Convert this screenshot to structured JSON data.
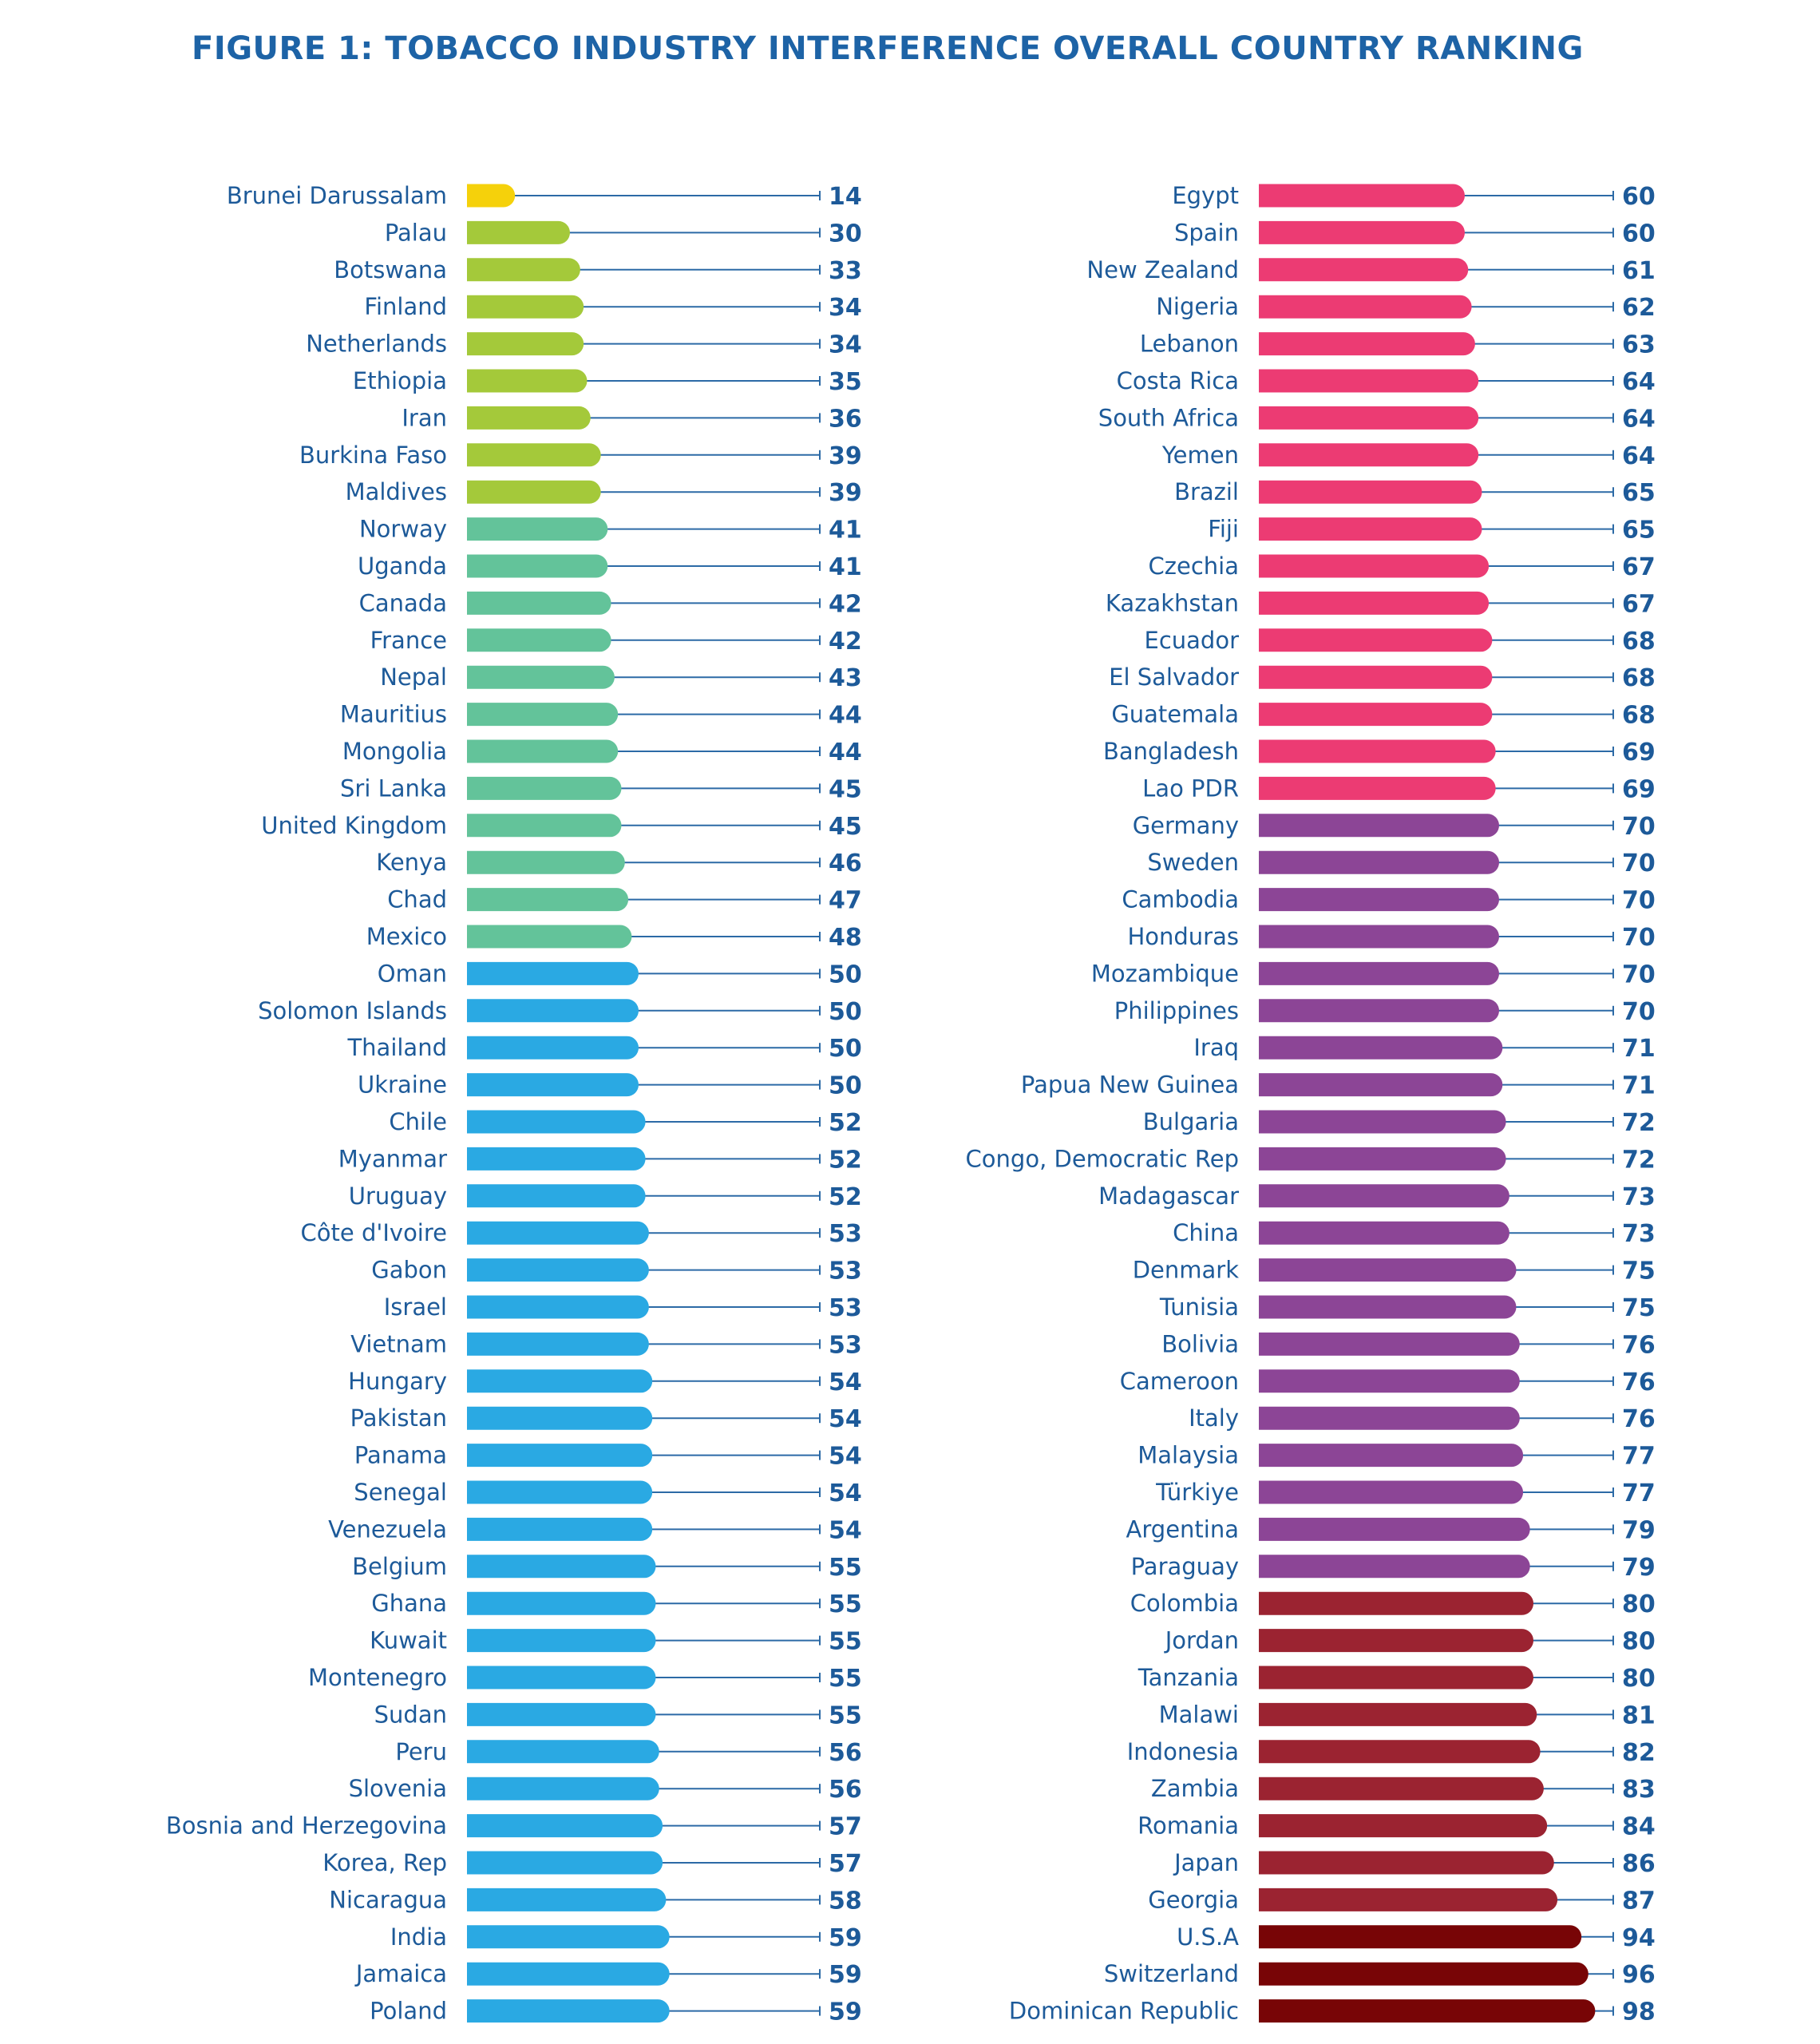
{
  "page": {
    "title": "FIGURE 1: TOBACCO INDUSTRY INTERFERENCE OVERALL COUNTRY RANKING"
  },
  "chart_data": {
    "type": "bar",
    "title": "FIGURE 1: TOBACCO INDUSTRY INTERFERENCE OVERALL COUNTRY RANKING",
    "xlabel": "",
    "ylabel": "",
    "xlim": [
      0,
      100
    ],
    "grid": false,
    "legend": "none",
    "color_bands": [
      {
        "max": 14,
        "color": "#f5d10b"
      },
      {
        "max": 39,
        "color": "#a4c93a"
      },
      {
        "max": 48,
        "color": "#63c39a"
      },
      {
        "max": 59,
        "color": "#2aa9e3"
      },
      {
        "max": 69,
        "color": "#ec3b73"
      },
      {
        "max": 79,
        "color": "#8c4596"
      },
      {
        "max": 87,
        "color": "#9b2331"
      },
      {
        "max": 100,
        "color": "#780506"
      }
    ],
    "columns": [
      {
        "categories": [
          "Brunei Darussalam",
          "Palau",
          "Botswana",
          "Finland",
          "Netherlands",
          "Ethiopia",
          "Iran",
          "Burkina Faso",
          "Maldives",
          "Norway",
          "Uganda",
          "Canada",
          "France",
          "Nepal",
          "Mauritius",
          "Mongolia",
          "Sri Lanka",
          "United Kingdom",
          "Kenya",
          "Chad",
          "Mexico",
          "Oman",
          "Solomon Islands",
          "Thailand",
          "Ukraine",
          "Chile",
          "Myanmar",
          "Uruguay",
          "Côte d'Ivoire",
          "Gabon",
          "Israel",
          "Vietnam",
          "Hungary",
          "Pakistan",
          "Panama",
          "Senegal",
          "Venezuela",
          "Belgium",
          "Ghana",
          "Kuwait",
          "Montenegro",
          "Sudan",
          "Peru",
          "Slovenia",
          "Bosnia and Herzegovina",
          "Korea, Rep",
          "Nicaragua",
          "India",
          "Jamaica",
          "Poland"
        ],
        "values": [
          14,
          30,
          33,
          34,
          34,
          35,
          36,
          39,
          39,
          41,
          41,
          42,
          42,
          43,
          44,
          44,
          45,
          45,
          46,
          47,
          48,
          50,
          50,
          50,
          50,
          52,
          52,
          52,
          53,
          53,
          53,
          53,
          54,
          54,
          54,
          54,
          54,
          55,
          55,
          55,
          55,
          55,
          56,
          56,
          57,
          57,
          58,
          59,
          59,
          59
        ]
      },
      {
        "categories": [
          "Egypt",
          "Spain",
          "New Zealand",
          "Nigeria",
          "Lebanon",
          "Costa Rica",
          "South Africa",
          "Yemen",
          "Brazil",
          "Fiji",
          "Czechia",
          "Kazakhstan",
          "Ecuador",
          "El Salvador",
          "Guatemala",
          "Bangladesh",
          "Lao PDR",
          "Germany",
          "Sweden",
          "Cambodia",
          "Honduras",
          "Mozambique",
          "Philippines",
          "Iraq",
          "Papua New Guinea",
          "Bulgaria",
          "Congo, Democratic Rep",
          "Madagascar",
          "China",
          "Denmark",
          "Tunisia",
          "Bolivia",
          "Cameroon",
          "Italy",
          "Malaysia",
          "Türkiye",
          "Argentina",
          "Paraguay",
          "Colombia",
          "Jordan",
          "Tanzania",
          "Malawi",
          "Indonesia",
          "Zambia",
          "Romania",
          "Japan",
          "Georgia",
          "U.S.A",
          "Switzerland",
          "Dominican Republic"
        ],
        "values": [
          60,
          60,
          61,
          62,
          63,
          64,
          64,
          64,
          65,
          65,
          67,
          67,
          68,
          68,
          68,
          69,
          69,
          70,
          70,
          70,
          70,
          70,
          70,
          71,
          71,
          72,
          72,
          73,
          73,
          75,
          75,
          76,
          76,
          76,
          77,
          77,
          79,
          79,
          80,
          80,
          80,
          81,
          82,
          83,
          84,
          86,
          87,
          94,
          96,
          98
        ]
      }
    ]
  }
}
